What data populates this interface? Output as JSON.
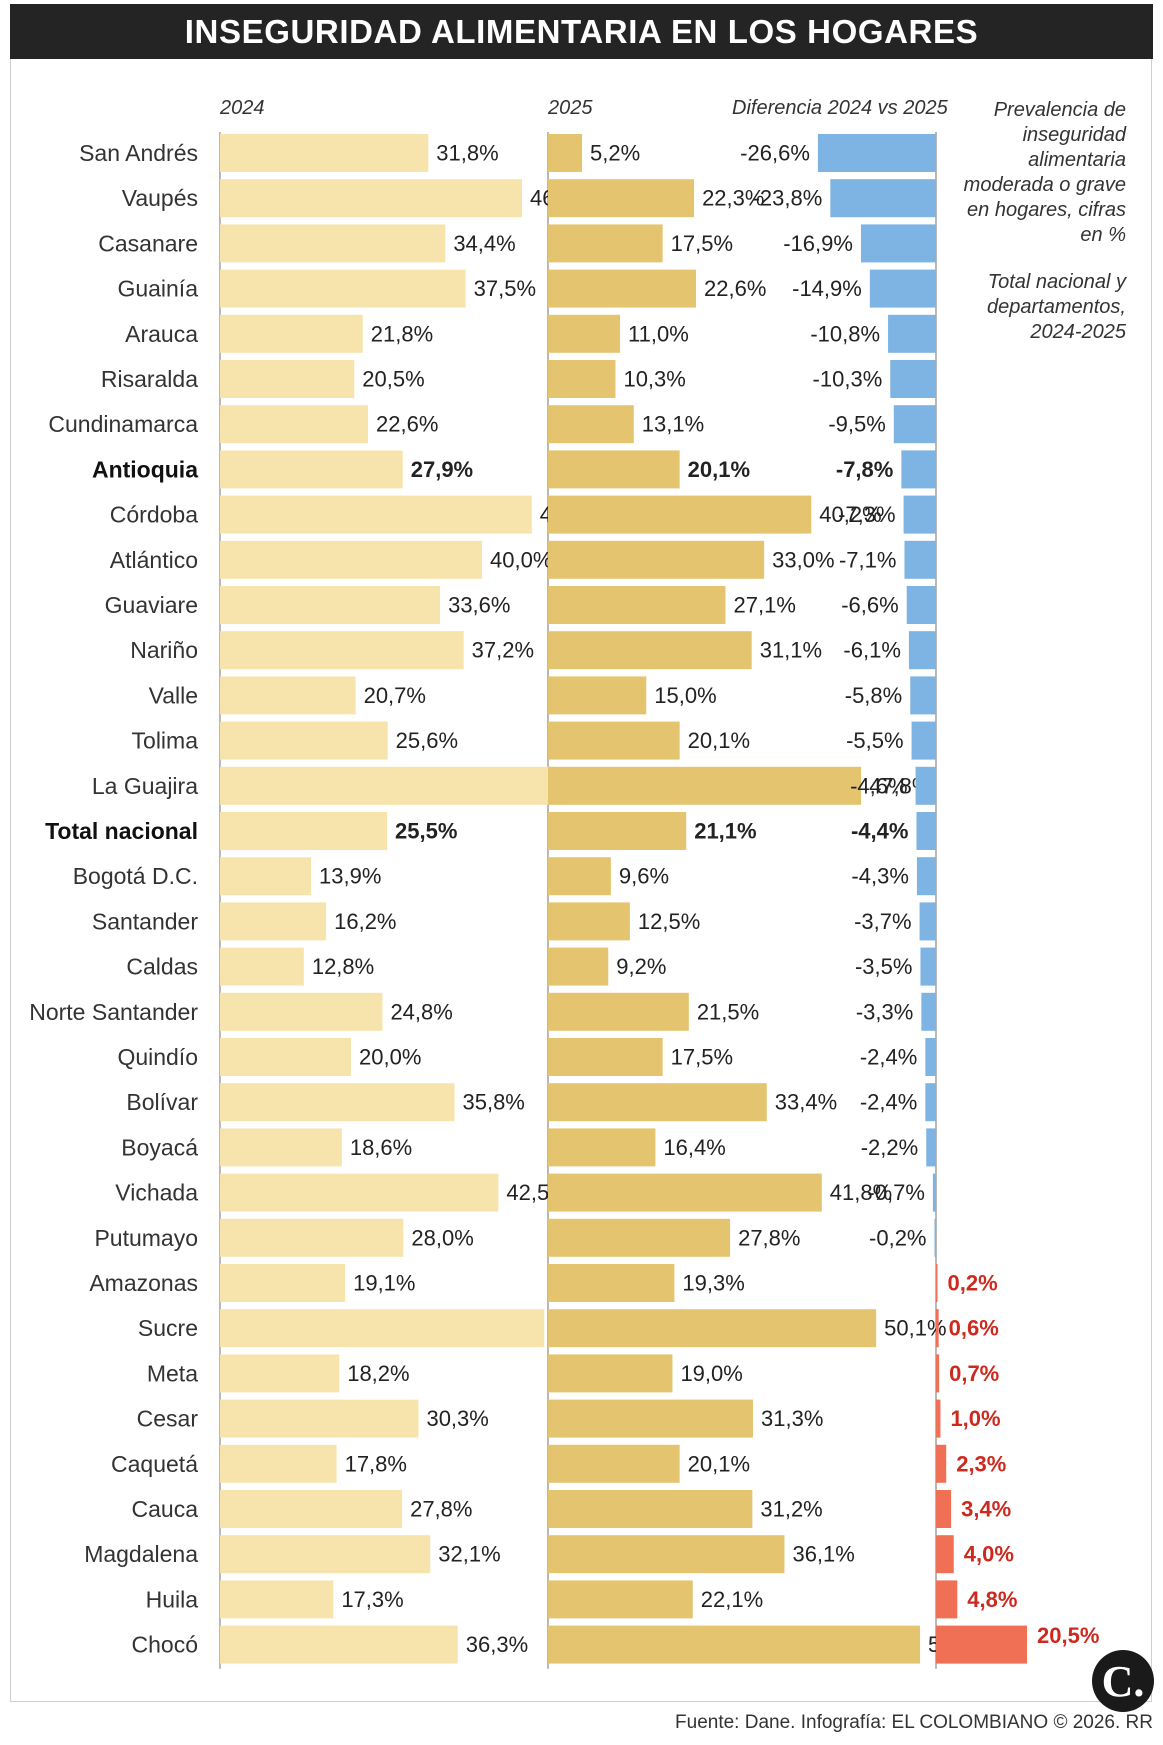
{
  "title": "INSEGURIDAD ALIMENTARIA EN LOS HOGARES",
  "side_note": {
    "line1": "Prevalencia de inseguridad alimentaria moderada o grave en hogares, cifras en %",
    "line2": "Total nacional y departamentos, 2024-2025"
  },
  "source": "Fuente: Dane. Infografía: EL COLOMBIANO © 2026. RR",
  "logo": "C.",
  "colors": {
    "bar_2024": "#f7e4ad",
    "bar_2025": "#e4c46f",
    "diff_negative": "#7db4e3",
    "diff_positive": "#f07055",
    "diff_positive_text": "#cc2a1e"
  },
  "chart_data": {
    "type": "bar",
    "orientation": "horizontal",
    "columns": [
      "2024",
      "2025",
      "Diferencia 2024 vs 2025"
    ],
    "categories": [
      "San Andrés",
      "Vaupés",
      "Casanare",
      "Guainía",
      "Arauca",
      "Risaralda",
      "Cundinamarca",
      "Antioquia",
      "Córdoba",
      "Atlántico",
      "Guaviare",
      "Nariño",
      "Valle",
      "Tolima",
      "La Guajira",
      "Total nacional",
      "Bogotá D.C.",
      "Santander",
      "Caldas",
      "Norte Santander",
      "Quindío",
      "Bolívar",
      "Boyacá",
      "Vichada",
      "Putumayo",
      "Amazonas",
      "Sucre",
      "Meta",
      "Cesar",
      "Caquetá",
      "Cauca",
      "Magdalena",
      "Huila",
      "Chocó"
    ],
    "bold_categories": [
      "Antioquia",
      "Total nacional"
    ],
    "series": [
      {
        "name": "2024",
        "values": [
          31.8,
          46.1,
          34.4,
          37.5,
          21.8,
          20.5,
          22.6,
          27.9,
          47.6,
          40.0,
          33.6,
          37.2,
          20.7,
          25.6,
          52.4,
          25.5,
          13.9,
          16.2,
          12.8,
          24.8,
          20.0,
          35.8,
          18.6,
          42.5,
          28.0,
          19.1,
          49.5,
          18.2,
          30.3,
          17.8,
          27.8,
          32.1,
          17.3,
          36.3
        ]
      },
      {
        "name": "2025",
        "values": [
          5.2,
          22.3,
          17.5,
          22.6,
          11.0,
          10.3,
          13.1,
          20.1,
          40.2,
          33.0,
          27.1,
          31.1,
          15.0,
          20.1,
          47.8,
          21.1,
          9.6,
          12.5,
          9.2,
          21.5,
          17.5,
          33.4,
          16.4,
          41.8,
          27.8,
          19.3,
          50.1,
          19.0,
          31.3,
          20.1,
          31.2,
          36.1,
          22.1,
          56.8
        ]
      },
      {
        "name": "Diferencia 2024 vs 2025",
        "values": [
          -26.6,
          -23.8,
          -16.9,
          -14.9,
          -10.8,
          -10.3,
          -9.5,
          -7.8,
          -7.3,
          -7.1,
          -6.6,
          -6.1,
          -5.8,
          -5.5,
          -4.6,
          -4.4,
          -4.3,
          -3.7,
          -3.5,
          -3.3,
          -2.4,
          -2.4,
          -2.2,
          -0.7,
          -0.2,
          0.2,
          0.6,
          0.7,
          1.0,
          2.3,
          3.4,
          4.0,
          4.8,
          20.5
        ]
      }
    ],
    "value_format": "decimal comma, percent sign",
    "unit": "%"
  }
}
